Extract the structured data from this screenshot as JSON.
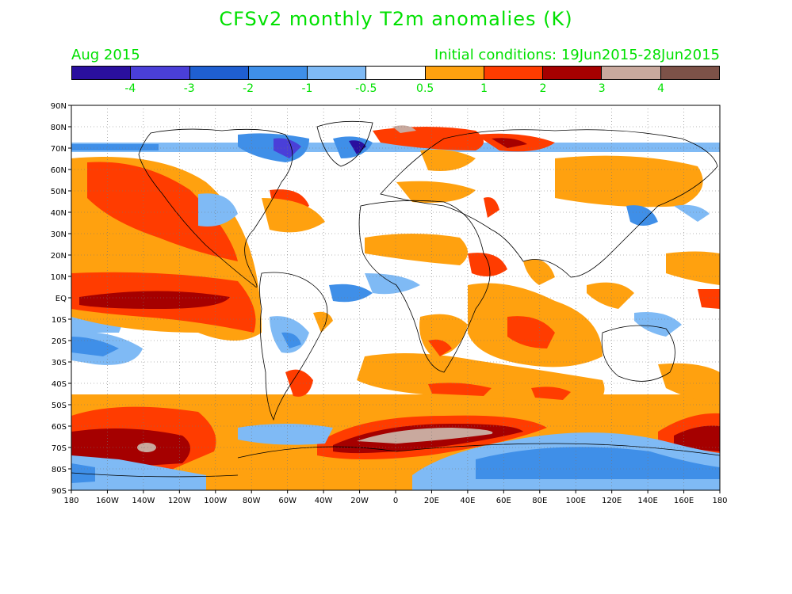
{
  "title": "CFSv2 monthly T2m anomalies (K)",
  "valid_month": "Aug 2015",
  "initial_conditions": "Initial conditions: 19Jun2015-28Jun2015",
  "colorbar": {
    "colors": [
      "#2a0f9e",
      "#4a3fd8",
      "#1f5fd1",
      "#3f8fe8",
      "#7fbaf5",
      "#ffffff",
      "#ffa10f",
      "#ff3c00",
      "#a50000",
      "#c9a99e",
      "#7d5248"
    ],
    "labels": [
      "-4",
      "-3",
      "-2",
      "-1",
      "-0.5",
      "0.5",
      "1",
      "2",
      "3",
      "4"
    ]
  },
  "lat_labels": [
    "90N",
    "80N",
    "70N",
    "60N",
    "50N",
    "40N",
    "30N",
    "20N",
    "10N",
    "EQ",
    "10S",
    "20S",
    "30S",
    "40S",
    "50S",
    "60S",
    "70S",
    "80S",
    "90S"
  ],
  "lon_labels": [
    "180",
    "160W",
    "140W",
    "120W",
    "100W",
    "80W",
    "60W",
    "40W",
    "20W",
    "0",
    "20E",
    "40E",
    "60E",
    "80E",
    "100E",
    "120E",
    "140E",
    "160E",
    "180"
  ]
}
